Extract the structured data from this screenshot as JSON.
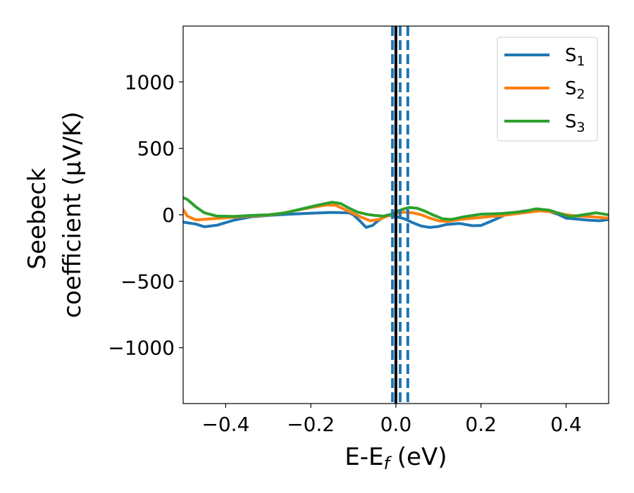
{
  "chart_data": {
    "type": "line",
    "xlabel_main": "E-E",
    "xlabel_sub": "f",
    "xlabel_unit": " (eV)",
    "ylabel_line1": "Seebeck",
    "ylabel_line2": "coefficient  (μV/K)",
    "xlim": [
      -0.5,
      0.5
    ],
    "ylim": [
      -1420,
      1420
    ],
    "x_ticks": [
      -0.4,
      -0.2,
      0.0,
      0.2,
      0.4
    ],
    "x_tick_labels": [
      "−0.4",
      "−0.2",
      "0.0",
      "0.2",
      "0.4"
    ],
    "y_ticks": [
      1000,
      500,
      0,
      -500,
      -1000
    ],
    "y_tick_labels": [
      "1000",
      "500",
      "0",
      "−500",
      "−1000"
    ],
    "legend_position": "upper right",
    "vertical_lines": [
      {
        "x": 0.0,
        "style": "solid",
        "color": "#000000"
      },
      {
        "x": -0.008,
        "style": "dashed",
        "color": "#1f77b4"
      },
      {
        "x": 0.01,
        "style": "dashed",
        "color": "#1f77b4"
      },
      {
        "x": 0.028,
        "style": "dashed",
        "color": "#1f77b4"
      }
    ],
    "series": [
      {
        "name": "S",
        "sub": "1",
        "color": "#1f77b4",
        "points": [
          [
            -0.5,
            -55
          ],
          [
            -0.47,
            -70
          ],
          [
            -0.45,
            -90
          ],
          [
            -0.42,
            -78
          ],
          [
            -0.38,
            -40
          ],
          [
            -0.34,
            -15
          ],
          [
            -0.3,
            -5
          ],
          [
            -0.25,
            5
          ],
          [
            -0.2,
            12
          ],
          [
            -0.15,
            18
          ],
          [
            -0.11,
            15
          ],
          [
            -0.1,
            0
          ],
          [
            -0.085,
            -45
          ],
          [
            -0.07,
            -95
          ],
          [
            -0.055,
            -80
          ],
          [
            -0.04,
            -40
          ],
          [
            -0.025,
            -10
          ],
          [
            -0.01,
            -5
          ],
          [
            0.0,
            -12
          ],
          [
            0.02,
            -30
          ],
          [
            0.04,
            -60
          ],
          [
            0.06,
            -85
          ],
          [
            0.08,
            -95
          ],
          [
            0.1,
            -88
          ],
          [
            0.12,
            -72
          ],
          [
            0.15,
            -65
          ],
          [
            0.18,
            -82
          ],
          [
            0.2,
            -80
          ],
          [
            0.23,
            -40
          ],
          [
            0.26,
            5
          ],
          [
            0.3,
            28
          ],
          [
            0.33,
            40
          ],
          [
            0.35,
            35
          ],
          [
            0.38,
            5
          ],
          [
            0.4,
            -25
          ],
          [
            0.42,
            -30
          ],
          [
            0.45,
            -40
          ],
          [
            0.48,
            -45
          ],
          [
            0.5,
            -35
          ]
        ]
      },
      {
        "name": "S",
        "sub": "2",
        "color": "#ff7f0e",
        "points": [
          [
            -0.5,
            40
          ],
          [
            -0.49,
            -10
          ],
          [
            -0.47,
            -38
          ],
          [
            -0.44,
            -32
          ],
          [
            -0.4,
            -22
          ],
          [
            -0.35,
            -10
          ],
          [
            -0.3,
            -2
          ],
          [
            -0.27,
            10
          ],
          [
            -0.24,
            30
          ],
          [
            -0.2,
            55
          ],
          [
            -0.16,
            75
          ],
          [
            -0.14,
            70
          ],
          [
            -0.12,
            40
          ],
          [
            -0.1,
            10
          ],
          [
            -0.08,
            -20
          ],
          [
            -0.06,
            -45
          ],
          [
            -0.04,
            -35
          ],
          [
            -0.02,
            -10
          ],
          [
            0.0,
            10
          ],
          [
            0.02,
            20
          ],
          [
            0.04,
            15
          ],
          [
            0.06,
            0
          ],
          [
            0.08,
            -25
          ],
          [
            0.1,
            -45
          ],
          [
            0.12,
            -50
          ],
          [
            0.15,
            -35
          ],
          [
            0.2,
            -20
          ],
          [
            0.25,
            -5
          ],
          [
            0.3,
            15
          ],
          [
            0.34,
            30
          ],
          [
            0.37,
            20
          ],
          [
            0.4,
            0
          ],
          [
            0.43,
            -10
          ],
          [
            0.46,
            -15
          ],
          [
            0.5,
            -25
          ]
        ]
      },
      {
        "name": "S",
        "sub": "3",
        "color": "#2ca02c",
        "points": [
          [
            -0.5,
            130
          ],
          [
            -0.49,
            115
          ],
          [
            -0.47,
            60
          ],
          [
            -0.45,
            15
          ],
          [
            -0.42,
            -10
          ],
          [
            -0.38,
            -12
          ],
          [
            -0.34,
            -5
          ],
          [
            -0.3,
            0
          ],
          [
            -0.26,
            15
          ],
          [
            -0.22,
            45
          ],
          [
            -0.18,
            75
          ],
          [
            -0.15,
            95
          ],
          [
            -0.13,
            85
          ],
          [
            -0.11,
            50
          ],
          [
            -0.09,
            20
          ],
          [
            -0.07,
            5
          ],
          [
            -0.05,
            -5
          ],
          [
            -0.03,
            -10
          ],
          [
            -0.01,
            5
          ],
          [
            0.01,
            35
          ],
          [
            0.03,
            55
          ],
          [
            0.05,
            50
          ],
          [
            0.07,
            25
          ],
          [
            0.09,
            -5
          ],
          [
            0.11,
            -30
          ],
          [
            0.13,
            -35
          ],
          [
            0.16,
            -15
          ],
          [
            0.2,
            5
          ],
          [
            0.25,
            10
          ],
          [
            0.3,
            25
          ],
          [
            0.33,
            45
          ],
          [
            0.36,
            35
          ],
          [
            0.39,
            5
          ],
          [
            0.41,
            -15
          ],
          [
            0.44,
            0
          ],
          [
            0.47,
            15
          ],
          [
            0.5,
            0
          ]
        ]
      }
    ]
  }
}
